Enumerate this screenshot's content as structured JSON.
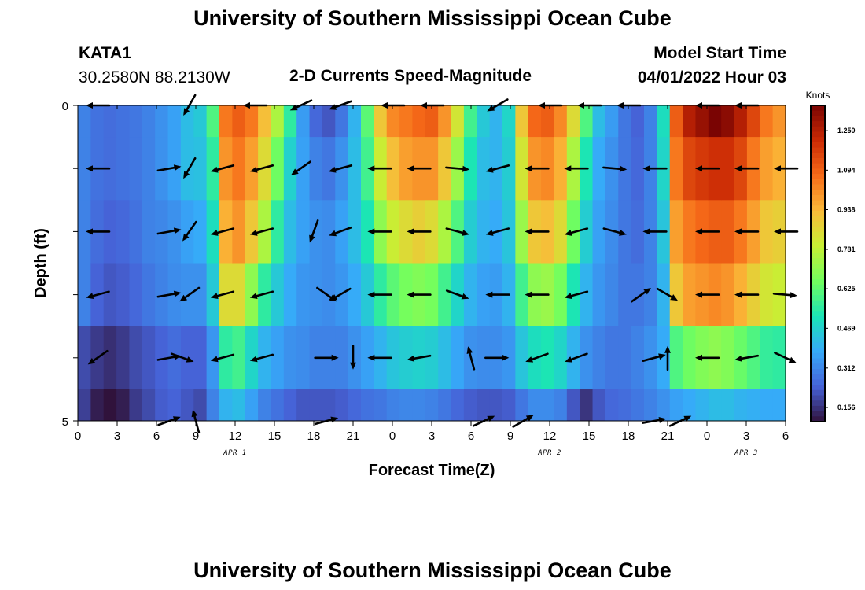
{
  "title": "University of Southern Mississippi Ocean Cube",
  "station": {
    "id": "KATA1",
    "coords": "30.2580N  88.2130W"
  },
  "subtitle": "2-D Currents Speed-Magnitude",
  "model_start": {
    "label": "Model Start Time",
    "value": "04/01/2022 Hour 03"
  },
  "footer_title": "University of Southern Mississippi Ocean Cube",
  "chart_data": {
    "type": "heatmap",
    "title": "2-D Currents Speed-Magnitude",
    "xlabel": "Forecast Time(Z)",
    "ylabel": "Depth (ft)",
    "colorbar_label": "Knots",
    "x_tick_labels": [
      "0",
      "3",
      "6",
      "9",
      "12",
      "15",
      "18",
      "21",
      "0",
      "3",
      "6",
      "9",
      "12",
      "15",
      "18",
      "21",
      "0",
      "3",
      "6"
    ],
    "date_labels": [
      {
        "text": "APR 1",
        "hour": 12
      },
      {
        "text": "APR 2",
        "hour": 36
      },
      {
        "text": "APR 3",
        "hour": 51
      }
    ],
    "y_tick_labels": [
      {
        "depth": 0,
        "text": "0"
      },
      {
        "depth": 5,
        "text": "5"
      }
    ],
    "xlim_hours": [
      0,
      54
    ],
    "ylim_ft": [
      0,
      5
    ],
    "colorbar_ticks": [
      "1.250",
      "1.094",
      "0.938",
      "0.781",
      "0.625",
      "0.469",
      "0.312",
      "0.156"
    ],
    "colorbar_range": [
      0.1,
      1.35
    ],
    "colors": [
      "#30123b",
      "#4662d7",
      "#36aaf9",
      "#1ae4b6",
      "#72fe5e",
      "#c8ef34",
      "#faba39",
      "#f66b19",
      "#ca2a04",
      "#7a0403"
    ],
    "depth_levels_ft": [
      0,
      1,
      2,
      3,
      4,
      5
    ],
    "speed_profiles": [
      {
        "hour": 0,
        "v": [
          0.3,
          0.3,
          0.3,
          0.3,
          0.2,
          0.18
        ]
      },
      {
        "hour": 1,
        "v": [
          0.27,
          0.27,
          0.26,
          0.24,
          0.17,
          0.12
        ]
      },
      {
        "hour": 2,
        "v": [
          0.26,
          0.26,
          0.24,
          0.22,
          0.15,
          0.08
        ]
      },
      {
        "hour": 3,
        "v": [
          0.27,
          0.27,
          0.25,
          0.23,
          0.17,
          0.12
        ]
      },
      {
        "hour": 4,
        "v": [
          0.28,
          0.28,
          0.27,
          0.25,
          0.2,
          0.17
        ]
      },
      {
        "hour": 5,
        "v": [
          0.3,
          0.3,
          0.3,
          0.28,
          0.22,
          0.2
        ]
      },
      {
        "hour": 6,
        "v": [
          0.33,
          0.33,
          0.31,
          0.3,
          0.24,
          0.23
        ]
      },
      {
        "hour": 7,
        "v": [
          0.36,
          0.36,
          0.33,
          0.32,
          0.26,
          0.24
        ]
      },
      {
        "hour": 8,
        "v": [
          0.42,
          0.42,
          0.36,
          0.33,
          0.24,
          0.22
        ]
      },
      {
        "hour": 9,
        "v": [
          0.45,
          0.43,
          0.38,
          0.33,
          0.24,
          0.2
        ]
      },
      {
        "hour": 10,
        "v": [
          0.6,
          0.55,
          0.5,
          0.45,
          0.34,
          0.3
        ]
      },
      {
        "hour": 11,
        "v": [
          1.05,
          1.0,
          0.95,
          0.85,
          0.55,
          0.4
        ]
      },
      {
        "hour": 12,
        "v": [
          1.1,
          1.05,
          1.0,
          0.85,
          0.58,
          0.42
        ]
      },
      {
        "hour": 13,
        "v": [
          1.05,
          0.98,
          0.9,
          0.7,
          0.48,
          0.36
        ]
      },
      {
        "hour": 14,
        "v": [
          0.92,
          0.85,
          0.75,
          0.55,
          0.4,
          0.3
        ]
      },
      {
        "hour": 15,
        "v": [
          0.75,
          0.65,
          0.55,
          0.45,
          0.36,
          0.27
        ]
      },
      {
        "hour": 16,
        "v": [
          0.55,
          0.47,
          0.42,
          0.38,
          0.33,
          0.24
        ]
      },
      {
        "hour": 17,
        "v": [
          0.35,
          0.36,
          0.36,
          0.34,
          0.32,
          0.22
        ]
      },
      {
        "hour": 18,
        "v": [
          0.25,
          0.3,
          0.33,
          0.33,
          0.3,
          0.22
        ]
      },
      {
        "hour": 19,
        "v": [
          0.22,
          0.28,
          0.32,
          0.32,
          0.3,
          0.22
        ]
      },
      {
        "hour": 20,
        "v": [
          0.28,
          0.33,
          0.36,
          0.34,
          0.3,
          0.23
        ]
      },
      {
        "hour": 21,
        "v": [
          0.4,
          0.42,
          0.42,
          0.38,
          0.33,
          0.25
        ]
      },
      {
        "hour": 22,
        "v": [
          0.62,
          0.58,
          0.52,
          0.45,
          0.36,
          0.27
        ]
      },
      {
        "hour": 23,
        "v": [
          0.9,
          0.8,
          0.7,
          0.55,
          0.4,
          0.28
        ]
      },
      {
        "hour": 24,
        "v": [
          1.02,
          0.92,
          0.8,
          0.62,
          0.44,
          0.3
        ]
      },
      {
        "hour": 25,
        "v": [
          1.05,
          0.98,
          0.85,
          0.66,
          0.46,
          0.31
        ]
      },
      {
        "hour": 26,
        "v": [
          1.08,
          1.0,
          0.88,
          0.68,
          0.47,
          0.31
        ]
      },
      {
        "hour": 27,
        "v": [
          1.1,
          1.0,
          0.85,
          0.66,
          0.46,
          0.3
        ]
      },
      {
        "hour": 28,
        "v": [
          1.0,
          0.9,
          0.75,
          0.58,
          0.42,
          0.28
        ]
      },
      {
        "hour": 29,
        "v": [
          0.82,
          0.72,
          0.6,
          0.48,
          0.37,
          0.25
        ]
      },
      {
        "hour": 30,
        "v": [
          0.58,
          0.52,
          0.46,
          0.4,
          0.33,
          0.23
        ]
      },
      {
        "hour": 31,
        "v": [
          0.45,
          0.42,
          0.4,
          0.36,
          0.32,
          0.22
        ]
      },
      {
        "hour": 32,
        "v": [
          0.4,
          0.4,
          0.38,
          0.35,
          0.32,
          0.22
        ]
      },
      {
        "hour": 33,
        "v": [
          0.48,
          0.46,
          0.44,
          0.4,
          0.34,
          0.23
        ]
      },
      {
        "hour": 34,
        "v": [
          0.9,
          0.82,
          0.72,
          0.58,
          0.44,
          0.28
        ]
      },
      {
        "hour": 35,
        "v": [
          1.08,
          1.0,
          0.9,
          0.7,
          0.5,
          0.32
        ]
      },
      {
        "hour": 36,
        "v": [
          1.1,
          1.02,
          0.92,
          0.72,
          0.52,
          0.32
        ]
      },
      {
        "hour": 37,
        "v": [
          1.02,
          0.95,
          0.85,
          0.66,
          0.48,
          0.3
        ]
      },
      {
        "hour": 38,
        "v": [
          0.85,
          0.75,
          0.65,
          0.52,
          0.4,
          0.22
        ]
      },
      {
        "hour": 39,
        "v": [
          0.6,
          0.52,
          0.46,
          0.4,
          0.33,
          0.16
        ]
      },
      {
        "hour": 40,
        "v": [
          0.42,
          0.38,
          0.36,
          0.34,
          0.3,
          0.22
        ]
      },
      {
        "hour": 41,
        "v": [
          0.35,
          0.33,
          0.32,
          0.31,
          0.28,
          0.25
        ]
      },
      {
        "hour": 42,
        "v": [
          0.28,
          0.28,
          0.28,
          0.28,
          0.28,
          0.26
        ]
      },
      {
        "hour": 43,
        "v": [
          0.24,
          0.25,
          0.26,
          0.28,
          0.3,
          0.28
        ]
      },
      {
        "hour": 44,
        "v": [
          0.3,
          0.3,
          0.3,
          0.3,
          0.33,
          0.3
        ]
      },
      {
        "hour": 45,
        "v": [
          0.5,
          0.48,
          0.44,
          0.4,
          0.38,
          0.33
        ]
      },
      {
        "hour": 46,
        "v": [
          1.1,
          1.05,
          0.98,
          0.9,
          0.6,
          0.36
        ]
      },
      {
        "hour": 47,
        "v": [
          1.25,
          1.15,
          1.05,
          0.98,
          0.65,
          0.38
        ]
      },
      {
        "hour": 48,
        "v": [
          1.3,
          1.18,
          1.08,
          1.0,
          0.68,
          0.4
        ]
      },
      {
        "hour": 49,
        "v": [
          1.35,
          1.2,
          1.1,
          1.02,
          0.7,
          0.42
        ]
      },
      {
        "hour": 50,
        "v": [
          1.32,
          1.2,
          1.1,
          1.0,
          0.68,
          0.42
        ]
      },
      {
        "hour": 51,
        "v": [
          1.25,
          1.15,
          1.05,
          0.95,
          0.64,
          0.4
        ]
      },
      {
        "hour": 52,
        "v": [
          1.15,
          1.05,
          0.98,
          0.88,
          0.6,
          0.39
        ]
      },
      {
        "hour": 53,
        "v": [
          1.05,
          0.98,
          0.9,
          0.82,
          0.56,
          0.38
        ]
      },
      {
        "hour": 54,
        "v": [
          1.0,
          0.95,
          0.88,
          0.8,
          0.55,
          0.38
        ]
      }
    ],
    "current_vectors": [
      {
        "hour": 1.5,
        "depth": 0,
        "dir_deg": 180
      },
      {
        "hour": 8.5,
        "depth": 0,
        "dir_deg": 240
      },
      {
        "hour": 13.5,
        "depth": 0,
        "dir_deg": 180
      },
      {
        "hour": 17,
        "depth": 0,
        "dir_deg": 205
      },
      {
        "hour": 20,
        "depth": 0,
        "dir_deg": 200
      },
      {
        "hour": 24,
        "depth": 0,
        "dir_deg": 180
      },
      {
        "hour": 27,
        "depth": 0,
        "dir_deg": 180
      },
      {
        "hour": 32,
        "depth": 0,
        "dir_deg": 210
      },
      {
        "hour": 36,
        "depth": 0,
        "dir_deg": 180
      },
      {
        "hour": 39,
        "depth": 0,
        "dir_deg": 180
      },
      {
        "hour": 42,
        "depth": 0,
        "dir_deg": 180
      },
      {
        "hour": 48,
        "depth": 0,
        "dir_deg": 180
      },
      {
        "hour": 51,
        "depth": 0,
        "dir_deg": 180
      },
      {
        "hour": 1.5,
        "depth": 1,
        "dir_deg": 180
      },
      {
        "hour": 7,
        "depth": 1,
        "dir_deg": 10
      },
      {
        "hour": 8.5,
        "depth": 1,
        "dir_deg": 240
      },
      {
        "hour": 11,
        "depth": 1,
        "dir_deg": 195
      },
      {
        "hour": 14,
        "depth": 1,
        "dir_deg": 195
      },
      {
        "hour": 17,
        "depth": 1,
        "dir_deg": 215
      },
      {
        "hour": 20,
        "depth": 1,
        "dir_deg": 195
      },
      {
        "hour": 23,
        "depth": 1,
        "dir_deg": 180
      },
      {
        "hour": 26,
        "depth": 1,
        "dir_deg": 180
      },
      {
        "hour": 29,
        "depth": 1,
        "dir_deg": 355
      },
      {
        "hour": 32,
        "depth": 1,
        "dir_deg": 195
      },
      {
        "hour": 35,
        "depth": 1,
        "dir_deg": 180
      },
      {
        "hour": 38,
        "depth": 1,
        "dir_deg": 180
      },
      {
        "hour": 41,
        "depth": 1,
        "dir_deg": 355
      },
      {
        "hour": 44,
        "depth": 1,
        "dir_deg": 180
      },
      {
        "hour": 48,
        "depth": 1,
        "dir_deg": 180
      },
      {
        "hour": 51,
        "depth": 1,
        "dir_deg": 180
      },
      {
        "hour": 54,
        "depth": 1,
        "dir_deg": 180
      },
      {
        "hour": 1.5,
        "depth": 2,
        "dir_deg": 180
      },
      {
        "hour": 7,
        "depth": 2,
        "dir_deg": 10
      },
      {
        "hour": 8.5,
        "depth": 2,
        "dir_deg": 235
      },
      {
        "hour": 11,
        "depth": 2,
        "dir_deg": 195
      },
      {
        "hour": 14,
        "depth": 2,
        "dir_deg": 195
      },
      {
        "hour": 18,
        "depth": 2,
        "dir_deg": 250
      },
      {
        "hour": 20,
        "depth": 2,
        "dir_deg": 200
      },
      {
        "hour": 23,
        "depth": 2,
        "dir_deg": 180
      },
      {
        "hour": 26,
        "depth": 2,
        "dir_deg": 180
      },
      {
        "hour": 29,
        "depth": 2,
        "dir_deg": 345
      },
      {
        "hour": 32,
        "depth": 2,
        "dir_deg": 195
      },
      {
        "hour": 35,
        "depth": 2,
        "dir_deg": 180
      },
      {
        "hour": 38,
        "depth": 2,
        "dir_deg": 195
      },
      {
        "hour": 41,
        "depth": 2,
        "dir_deg": 345
      },
      {
        "hour": 44,
        "depth": 2,
        "dir_deg": 180
      },
      {
        "hour": 48,
        "depth": 2,
        "dir_deg": 180
      },
      {
        "hour": 51,
        "depth": 2,
        "dir_deg": 180
      },
      {
        "hour": 54,
        "depth": 2,
        "dir_deg": 180
      },
      {
        "hour": 1.5,
        "depth": 3,
        "dir_deg": 195
      },
      {
        "hour": 7,
        "depth": 3,
        "dir_deg": 10
      },
      {
        "hour": 8.5,
        "depth": 3,
        "dir_deg": 215
      },
      {
        "hour": 11,
        "depth": 3,
        "dir_deg": 195
      },
      {
        "hour": 14,
        "depth": 3,
        "dir_deg": 195
      },
      {
        "hour": 19,
        "depth": 3,
        "dir_deg": 325
      },
      {
        "hour": 20,
        "depth": 3,
        "dir_deg": 210
      },
      {
        "hour": 23,
        "depth": 3,
        "dir_deg": 180
      },
      {
        "hour": 26,
        "depth": 3,
        "dir_deg": 180
      },
      {
        "hour": 29,
        "depth": 3,
        "dir_deg": 340
      },
      {
        "hour": 32,
        "depth": 3,
        "dir_deg": 180
      },
      {
        "hour": 35,
        "depth": 3,
        "dir_deg": 180
      },
      {
        "hour": 38,
        "depth": 3,
        "dir_deg": 195
      },
      {
        "hour": 43,
        "depth": 3,
        "dir_deg": 35
      },
      {
        "hour": 45,
        "depth": 3,
        "dir_deg": 330
      },
      {
        "hour": 48,
        "depth": 3,
        "dir_deg": 180
      },
      {
        "hour": 51,
        "depth": 3,
        "dir_deg": 180
      },
      {
        "hour": 54,
        "depth": 3,
        "dir_deg": 355
      },
      {
        "hour": 1.5,
        "depth": 4,
        "dir_deg": 215
      },
      {
        "hour": 7,
        "depth": 4,
        "dir_deg": 10
      },
      {
        "hour": 8,
        "depth": 4,
        "dir_deg": 340
      },
      {
        "hour": 11,
        "depth": 4,
        "dir_deg": 195
      },
      {
        "hour": 14,
        "depth": 4,
        "dir_deg": 195
      },
      {
        "hour": 19,
        "depth": 4,
        "dir_deg": 0
      },
      {
        "hour": 21,
        "depth": 4,
        "dir_deg": 270
      },
      {
        "hour": 23,
        "depth": 4,
        "dir_deg": 180
      },
      {
        "hour": 26,
        "depth": 4,
        "dir_deg": 190
      },
      {
        "hour": 30,
        "depth": 4,
        "dir_deg": 105
      },
      {
        "hour": 32,
        "depth": 4,
        "dir_deg": 0
      },
      {
        "hour": 35,
        "depth": 4,
        "dir_deg": 200
      },
      {
        "hour": 38,
        "depth": 4,
        "dir_deg": 200
      },
      {
        "hour": 44,
        "depth": 4,
        "dir_deg": 15
      },
      {
        "hour": 45,
        "depth": 4,
        "dir_deg": 90
      },
      {
        "hour": 48,
        "depth": 4,
        "dir_deg": 180
      },
      {
        "hour": 51,
        "depth": 4,
        "dir_deg": 190
      },
      {
        "hour": 54,
        "depth": 4,
        "dir_deg": 335
      },
      {
        "hour": 7,
        "depth": 5,
        "dir_deg": 20
      },
      {
        "hour": 9,
        "depth": 5,
        "dir_deg": 105
      },
      {
        "hour": 19,
        "depth": 5,
        "dir_deg": 15
      },
      {
        "hour": 31,
        "depth": 5,
        "dir_deg": 25
      },
      {
        "hour": 34,
        "depth": 5,
        "dir_deg": 30
      },
      {
        "hour": 44,
        "depth": 5,
        "dir_deg": 10
      },
      {
        "hour": 46,
        "depth": 5,
        "dir_deg": 25
      }
    ]
  }
}
